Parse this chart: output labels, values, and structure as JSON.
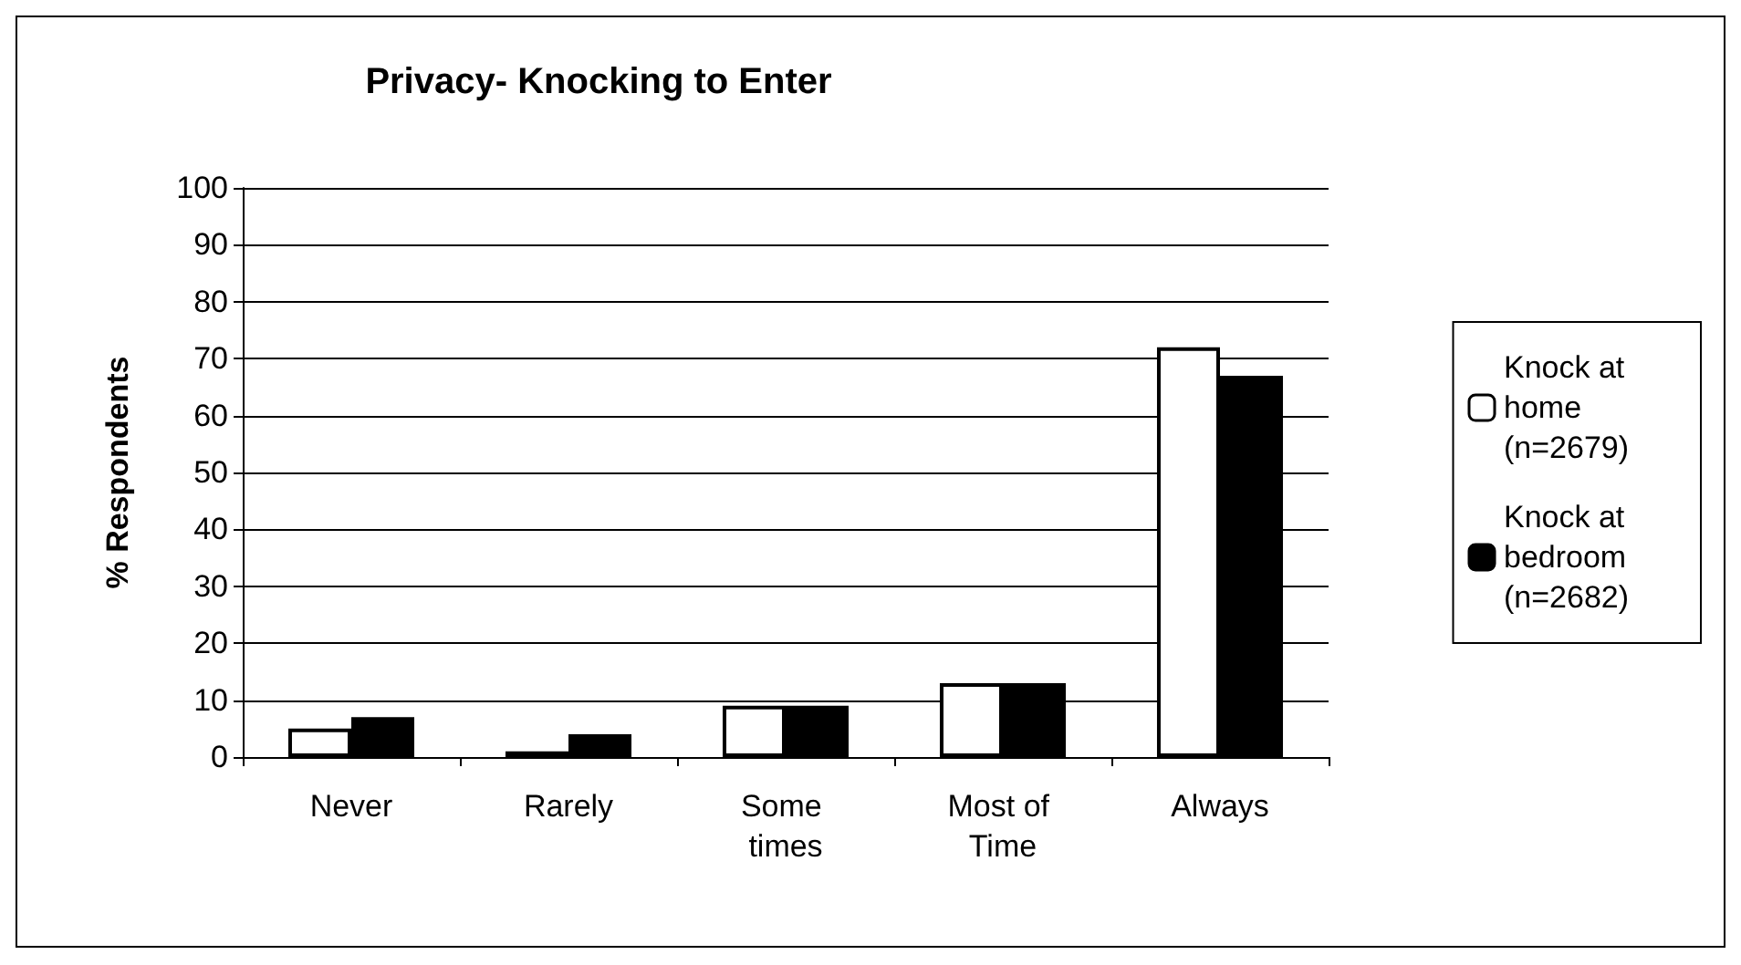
{
  "chart_data": {
    "type": "bar",
    "title": "Privacy- Knocking to Enter",
    "ylabel": "% Respondents",
    "categories": [
      "Never",
      "Rarely",
      "Some times",
      "Most of Time",
      "Always"
    ],
    "series": [
      {
        "name": "Knock at home (n=2679)",
        "color": "#ffffff",
        "values": [
          5,
          1,
          9,
          13,
          72
        ]
      },
      {
        "name": "Knock at bedroom (n=2682)",
        "color": "#000000",
        "values": [
          7,
          4,
          9,
          13,
          67
        ]
      }
    ],
    "ylim": [
      0,
      100
    ],
    "yticks": [
      0,
      10,
      20,
      30,
      40,
      50,
      60,
      70,
      80,
      90,
      100
    ],
    "grid": "y",
    "legend": "right"
  }
}
